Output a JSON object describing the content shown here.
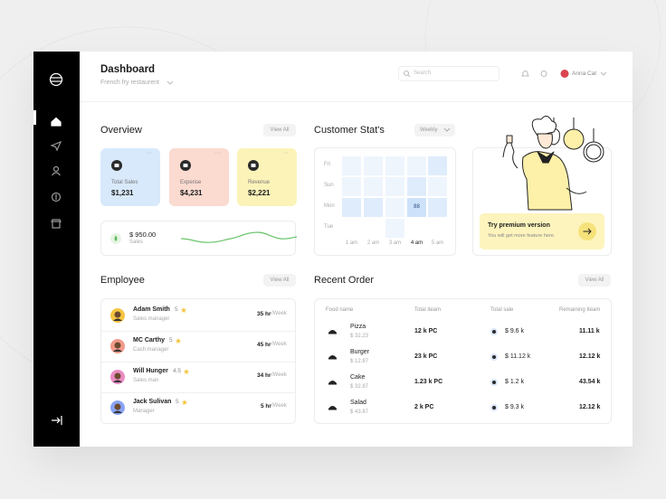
{
  "header": {
    "title": "Dashboard",
    "subtitle": "French fry restaurent",
    "search_placeholder": "Search",
    "user": "Anna Cat"
  },
  "overview": {
    "title": "Overview",
    "action": "View All",
    "cards": [
      {
        "label": "Total Sales",
        "value": "$1,231",
        "color": "#d8e9fb"
      },
      {
        "label": "Expense",
        "value": "$4,231",
        "color": "#fbdad0"
      },
      {
        "label": "Revenue",
        "value": "$2,221",
        "color": "#fcf3b9"
      }
    ],
    "sales": {
      "value": "$ 950.00",
      "label": "Sales"
    }
  },
  "customer_stats": {
    "title": "Customer Stat's",
    "period": "Weekly",
    "rows": [
      "Fri",
      "Sun",
      "Mon",
      "Tue"
    ],
    "columns": [
      "1 am",
      "2 am",
      "3 am",
      "4 am",
      "5 am"
    ],
    "levels": [
      [
        1,
        1,
        1,
        1,
        2
      ],
      [
        1,
        1,
        1,
        2,
        1
      ],
      [
        2,
        2,
        1,
        3,
        2
      ],
      [
        0,
        0,
        1,
        0,
        0
      ]
    ],
    "highlight": {
      "row": 2,
      "column": 3,
      "label": "88"
    }
  },
  "premium": {
    "title": "Try premium version",
    "text": "You will get more feature here."
  },
  "employees": {
    "title": "Employee",
    "action": "View All",
    "items": [
      {
        "name": "Adam Smith",
        "rating": 5,
        "role": "Sales manager",
        "hours": "35 hr",
        "period": "/Week"
      },
      {
        "name": "MC Carthy",
        "rating": 5,
        "role": "Cash manager",
        "hours": "45 hr",
        "period": "/Week"
      },
      {
        "name": "Will Hunger",
        "rating": 4.5,
        "role": "Sales man",
        "hours": "34 hr",
        "period": "/Week"
      },
      {
        "name": "Jack Sulivan",
        "rating": 5,
        "role": "Manager",
        "hours": "5 hr",
        "period": "/Week"
      }
    ]
  },
  "orders": {
    "title": "Recent Order",
    "action": "View All",
    "columns": [
      "Food name",
      "Total iteam",
      "Total sale",
      "Remaining Iteam"
    ],
    "rows": [
      {
        "name": "Pizza",
        "price": "$ 32.23",
        "total": "12 k PC",
        "sale": "$ 9.6 k",
        "remaining": "11.11 k"
      },
      {
        "name": "Burger",
        "price": "$ 12.87",
        "total": "23 k PC",
        "sale": "$ 11.12 k",
        "remaining": "12.12 k"
      },
      {
        "name": "Cake",
        "price": "$ 32.87",
        "total": "1.23 k PC",
        "sale": "$ 1.2 k",
        "remaining": "43.54 k"
      },
      {
        "name": "Salad",
        "price": "$ 43.87",
        "total": "2 k PC",
        "sale": "$ 9.3 k",
        "remaining": "12.12 k"
      }
    ]
  }
}
